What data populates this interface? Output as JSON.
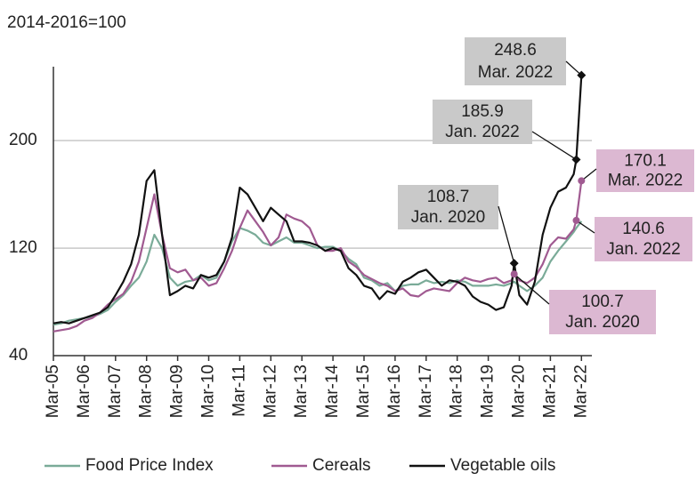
{
  "chart_data": {
    "type": "line",
    "ylabel": "2014-2016=100",
    "ylim": [
      40,
      255
    ],
    "yticks": [
      40,
      120,
      200
    ],
    "grid": true,
    "legend": "bottom",
    "xticks": [
      "Mar-05",
      "Mar-06",
      "Mar-07",
      "Mar-08",
      "Mar-09",
      "Mar-10",
      "Mar-11",
      "Mar-12",
      "Mar-13",
      "Mar-14",
      "Mar-15",
      "Mar-16",
      "Mar-17",
      "Mar-18",
      "Mar-19",
      "Mar-20",
      "Mar-21",
      "Mar-22"
    ],
    "x": [
      "Mar-05",
      "Jun-05",
      "Sep-05",
      "Dec-05",
      "Mar-06",
      "Jun-06",
      "Sep-06",
      "Dec-06",
      "Mar-07",
      "Jun-07",
      "Sep-07",
      "Dec-07",
      "Mar-08",
      "Jun-08",
      "Sep-08",
      "Dec-08",
      "Mar-09",
      "Jun-09",
      "Sep-09",
      "Dec-09",
      "Mar-10",
      "Jun-10",
      "Sep-10",
      "Dec-10",
      "Mar-11",
      "Jun-11",
      "Sep-11",
      "Dec-11",
      "Mar-12",
      "Jun-12",
      "Sep-12",
      "Dec-12",
      "Mar-13",
      "Jun-13",
      "Sep-13",
      "Dec-13",
      "Mar-14",
      "Jun-14",
      "Sep-14",
      "Dec-14",
      "Mar-15",
      "Jun-15",
      "Sep-15",
      "Dec-15",
      "Mar-16",
      "Jun-16",
      "Sep-16",
      "Dec-16",
      "Mar-17",
      "Jun-17",
      "Sep-17",
      "Dec-17",
      "Mar-18",
      "Jun-18",
      "Sep-18",
      "Dec-18",
      "Mar-19",
      "Jun-19",
      "Sep-19",
      "Dec-19",
      "Jan-20",
      "Mar-20",
      "Jun-20",
      "Sep-20",
      "Dec-20",
      "Mar-21",
      "Jun-21",
      "Sep-21",
      "Dec-21",
      "Jan-22",
      "Mar-22"
    ],
    "series": [
      {
        "name": "Food Price Index",
        "color": "#7aab98",
        "values": [
          63,
          64,
          66,
          67,
          68,
          69,
          71,
          74,
          80,
          85,
          92,
          98,
          110,
          130,
          120,
          98,
          92,
          95,
          96,
          100,
          96,
          98,
          110,
          125,
          135,
          133,
          130,
          124,
          122,
          125,
          128,
          124,
          124,
          122,
          120,
          121,
          121,
          118,
          112,
          108,
          98,
          96,
          92,
          94,
          88,
          92,
          93,
          93,
          96,
          94,
          95,
          94,
          96,
          95,
          92,
          92,
          92,
          93,
          92,
          94,
          95,
          92,
          88,
          92,
          98,
          110,
          118,
          125,
          132,
          135,
          140
        ]
      },
      {
        "name": "Cereals",
        "color": "#a05a91",
        "values": [
          58,
          59,
          60,
          62,
          66,
          68,
          72,
          78,
          82,
          86,
          95,
          110,
          135,
          160,
          130,
          105,
          102,
          104,
          96,
          98,
          92,
          94,
          105,
          118,
          135,
          148,
          140,
          132,
          122,
          128,
          145,
          142,
          140,
          135,
          122,
          118,
          118,
          120,
          110,
          106,
          100,
          97,
          94,
          92,
          88,
          90,
          85,
          84,
          88,
          90,
          89,
          88,
          94,
          98,
          96,
          95,
          97,
          98,
          94,
          96,
          100.7,
          96,
          94,
          98,
          108,
          122,
          128,
          127,
          134,
          140.6,
          170.1
        ]
      },
      {
        "name": "Vegetable oils",
        "color": "#111111",
        "values": [
          64,
          65,
          64,
          66,
          68,
          70,
          72,
          76,
          85,
          95,
          108,
          130,
          170,
          178,
          130,
          85,
          88,
          92,
          90,
          100,
          98,
          100,
          110,
          128,
          165,
          160,
          150,
          140,
          150,
          145,
          140,
          125,
          125,
          124,
          122,
          118,
          120,
          118,
          105,
          100,
          92,
          90,
          82,
          88,
          86,
          95,
          98,
          102,
          104,
          98,
          92,
          96,
          95,
          92,
          84,
          80,
          78,
          74,
          76,
          92,
          108.7,
          85,
          78,
          95,
          130,
          150,
          162,
          165,
          175,
          185.9,
          248.6
        ]
      }
    ],
    "annotations": [
      {
        "series": "Vegetable oils",
        "value": 248.6,
        "label": "248.6",
        "date": "Mar. 2022"
      },
      {
        "series": "Vegetable oils",
        "value": 185.9,
        "label": "185.9",
        "date": "Jan. 2022"
      },
      {
        "series": "Vegetable oils",
        "value": 108.7,
        "label": "108.7",
        "date": "Jan. 2020"
      },
      {
        "series": "Cereals",
        "value": 170.1,
        "label": "170.1",
        "date": "Mar. 2022"
      },
      {
        "series": "Cereals",
        "value": 140.6,
        "label": "140.6",
        "date": "Jan. 2022"
      },
      {
        "series": "Cereals",
        "value": 100.7,
        "label": "100.7",
        "date": "Jan. 2020"
      }
    ]
  }
}
